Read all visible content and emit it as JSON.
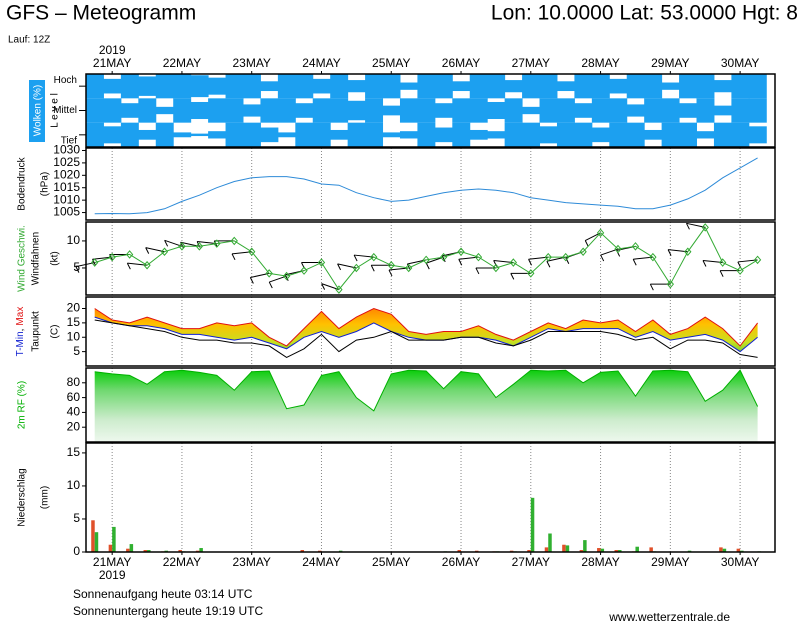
{
  "header": {
    "title": "GFS – Meteogramm",
    "location": "Lon: 10.0000 Lat: 53.0000 Hgt: 8",
    "run": "Lauf: 12Z"
  },
  "footer": {
    "sunrise": "Sonnenaufgang heute 03:14 UTC",
    "sunset": "Sonnenuntergang heute 19:19 UTC",
    "source": "www.wetterzentrale.de"
  },
  "chart_data": [
    {
      "type": "heatmap",
      "title": "Wolken (%)",
      "y_label": "L e v e l",
      "year_label": "2019",
      "x": [
        -6,
        0,
        6,
        12,
        18,
        24,
        30,
        36,
        42,
        48,
        54,
        60,
        66,
        72,
        78,
        84,
        90,
        96,
        102,
        108,
        114,
        120,
        126,
        132,
        138,
        144,
        150,
        156,
        162,
        168,
        174,
        180,
        186,
        192,
        198,
        204,
        210,
        216,
        222
      ],
      "xlim": [
        -9,
        228
      ],
      "xticks": [
        {
          "value": 0,
          "label": "21MAY"
        },
        {
          "value": 24,
          "label": "22MAY"
        },
        {
          "value": 48,
          "label": "23MAY"
        },
        {
          "value": 72,
          "label": "24MAY"
        },
        {
          "value": 96,
          "label": "25MAY"
        },
        {
          "value": 120,
          "label": "26MAY"
        },
        {
          "value": 144,
          "label": "27MAY"
        },
        {
          "value": 168,
          "label": "28MAY"
        },
        {
          "value": 192,
          "label": "29MAY"
        },
        {
          "value": 216,
          "label": "30MAY"
        }
      ],
      "color": "#1ca0f0",
      "series": [
        {
          "name": "Hoch",
          "values": [
            100,
            60,
            100,
            80,
            100,
            100,
            90,
            70,
            100,
            100,
            40,
            100,
            100,
            60,
            100,
            50,
            100,
            100,
            30,
            100,
            100,
            40,
            100,
            100,
            50,
            100,
            100,
            40,
            100,
            100,
            60,
            100,
            100,
            30,
            100,
            100,
            50,
            100,
            100
          ]
        },
        {
          "name": "Mittel",
          "values": [
            100,
            100,
            60,
            100,
            30,
            100,
            70,
            100,
            100,
            50,
            100,
            100,
            60,
            100,
            100,
            80,
            100,
            40,
            100,
            100,
            60,
            100,
            100,
            70,
            100,
            30,
            100,
            100,
            60,
            100,
            100,
            50,
            100,
            100,
            60,
            100,
            40,
            100,
            100
          ]
        },
        {
          "name": "Tief",
          "values": [
            100,
            70,
            100,
            40,
            100,
            20,
            10,
            30,
            100,
            100,
            60,
            20,
            100,
            100,
            40,
            100,
            100,
            20,
            30,
            100,
            60,
            100,
            40,
            30,
            100,
            100,
            70,
            100,
            100,
            60,
            100,
            100,
            40,
            100,
            100,
            30,
            100,
            100,
            70
          ]
        }
      ]
    },
    {
      "type": "line",
      "title": "Bodendruck",
      "y_label": "(hPa)",
      "x": [
        -6,
        0,
        6,
        12,
        18,
        24,
        30,
        36,
        42,
        48,
        54,
        60,
        66,
        72,
        78,
        84,
        90,
        96,
        102,
        108,
        114,
        120,
        126,
        132,
        138,
        144,
        150,
        156,
        162,
        168,
        174,
        180,
        186,
        192,
        198,
        204,
        210,
        216,
        222
      ],
      "xlim": [
        -9,
        228
      ],
      "ylim": [
        1002,
        1031
      ],
      "yticks": [
        1005,
        1010,
        1015,
        1020,
        1025,
        1030
      ],
      "series": [
        {
          "color": "#2e8bd8",
          "values": [
            1004.5,
            1004.6,
            1004.5,
            1005,
            1006.5,
            1009.5,
            1012,
            1015,
            1017.5,
            1019,
            1019.5,
            1019.5,
            1018.5,
            1016.5,
            1016,
            1013,
            1011,
            1009.5,
            1010,
            1011.5,
            1013,
            1014,
            1014.5,
            1014,
            1013,
            1011,
            1010,
            1009,
            1008.5,
            1008,
            1007.5,
            1006.5,
            1006.5,
            1008,
            1010.5,
            1014,
            1019,
            1023,
            1027
          ]
        }
      ]
    },
    {
      "type": "wind",
      "y_label": "(kt)",
      "x": [
        -6,
        0,
        6,
        12,
        18,
        24,
        30,
        36,
        42,
        48,
        54,
        60,
        66,
        72,
        78,
        84,
        90,
        96,
        102,
        108,
        114,
        120,
        126,
        132,
        138,
        144,
        150,
        156,
        162,
        168,
        174,
        180,
        186,
        192,
        198,
        204,
        210,
        216,
        222
      ],
      "xlim": [
        -9,
        228
      ],
      "ylim": [
        0,
        13.5
      ],
      "yticks": [
        5,
        10
      ],
      "series": [
        {
          "name": "Wind Geschwi.",
          "color": "#33aa33",
          "values": [
            6,
            7,
            7.5,
            5.5,
            8,
            9,
            9,
            9.5,
            10,
            8,
            4,
            3.5,
            4.5,
            6,
            1,
            5,
            7,
            5.5,
            5,
            6.5,
            7,
            8,
            7,
            5,
            6,
            4,
            7,
            7,
            8,
            11.5,
            8.5,
            9,
            7,
            2,
            8,
            12.5,
            6,
            4.5,
            6.5
          ]
        },
        {
          "name": "Windfahnen",
          "color": "#000000",
          "values": [
            250,
            260,
            270,
            280,
            290,
            300,
            290,
            280,
            270,
            260,
            250,
            240,
            250,
            270,
            300,
            290,
            280,
            270,
            260,
            250,
            240,
            250,
            260,
            270,
            280,
            270,
            260,
            250,
            240,
            230,
            240,
            250,
            260,
            270,
            280,
            290,
            280,
            270,
            260
          ]
        }
      ]
    },
    {
      "type": "range",
      "y_label": "(C)",
      "label_separator": ",",
      "x": [
        -6,
        0,
        6,
        12,
        18,
        24,
        30,
        36,
        42,
        48,
        54,
        60,
        66,
        72,
        78,
        84,
        90,
        96,
        102,
        108,
        114,
        120,
        126,
        132,
        138,
        144,
        150,
        156,
        162,
        168,
        174,
        180,
        186,
        192,
        198,
        204,
        210,
        216,
        222
      ],
      "xlim": [
        -9,
        228
      ],
      "ylim": [
        0,
        24
      ],
      "yticks": [
        5,
        10,
        15,
        20
      ],
      "series": [
        {
          "name": "T-Min",
          "color": "#1020d0",
          "values": [
            17,
            15,
            14,
            14,
            13,
            11,
            11,
            10,
            9,
            10,
            8,
            6,
            10,
            12,
            10,
            12,
            15,
            12,
            10,
            9,
            9,
            10,
            10,
            9,
            7,
            10,
            13,
            12,
            13,
            13,
            13,
            10,
            12,
            9,
            10,
            11,
            9,
            5,
            10
          ]
        },
        {
          "name": "Max",
          "color": "#e01010",
          "values": [
            20,
            16,
            15,
            17,
            15,
            13,
            13,
            15,
            14,
            15,
            10,
            7,
            13,
            19,
            13,
            17,
            20,
            18,
            12,
            11,
            12,
            12,
            14,
            11,
            9,
            12,
            15,
            13,
            16,
            15,
            16,
            12,
            16,
            11,
            13,
            17,
            13,
            7,
            15
          ]
        },
        {
          "name": "Taupunkt",
          "color": "#000000",
          "values": [
            16,
            15,
            14,
            13,
            12,
            10,
            9,
            9,
            8,
            8,
            7,
            3,
            6,
            11,
            5,
            9,
            10,
            12,
            9,
            9,
            9,
            10,
            10,
            8,
            7,
            9,
            12,
            12,
            12,
            12,
            11,
            9,
            10,
            6,
            9,
            9,
            8,
            4,
            3
          ]
        }
      ]
    },
    {
      "type": "area",
      "title": "2m RF (%)",
      "x": [
        -6,
        0,
        6,
        12,
        18,
        24,
        30,
        36,
        42,
        48,
        54,
        60,
        66,
        72,
        78,
        84,
        90,
        96,
        102,
        108,
        114,
        120,
        126,
        132,
        138,
        144,
        150,
        156,
        162,
        168,
        174,
        180,
        186,
        192,
        198,
        204,
        210,
        216,
        222
      ],
      "xlim": [
        -9,
        228
      ],
      "ylim": [
        0,
        100
      ],
      "yticks": [
        20,
        40,
        60,
        80
      ],
      "series": [
        {
          "color": "#00b000",
          "values": [
            95,
            92,
            90,
            78,
            95,
            97,
            94,
            90,
            70,
            95,
            96,
            45,
            50,
            90,
            95,
            60,
            42,
            92,
            97,
            96,
            72,
            95,
            92,
            60,
            78,
            97,
            96,
            97,
            80,
            94,
            96,
            62,
            96,
            97,
            95,
            55,
            70,
            97,
            48
          ]
        }
      ]
    },
    {
      "type": "bar",
      "title": "Niederschlag",
      "y_label": "(mm)",
      "year_label": "2019",
      "x": [
        -6,
        0,
        6,
        12,
        18,
        24,
        30,
        36,
        42,
        48,
        54,
        60,
        66,
        72,
        78,
        84,
        90,
        96,
        102,
        108,
        114,
        120,
        126,
        132,
        138,
        144,
        150,
        156,
        162,
        168,
        174,
        180,
        186,
        192,
        198,
        204,
        210,
        216,
        222
      ],
      "xlim": [
        -9,
        228
      ],
      "ylim": [
        0,
        16.5
      ],
      "yticks": [
        0,
        5,
        10,
        15
      ],
      "xticks": [
        {
          "value": 0,
          "label": "21MAY"
        },
        {
          "value": 24,
          "label": "22MAY"
        },
        {
          "value": 48,
          "label": "23MAY"
        },
        {
          "value": 72,
          "label": "24MAY"
        },
        {
          "value": 96,
          "label": "25MAY"
        },
        {
          "value": 120,
          "label": "26MAY"
        },
        {
          "value": 144,
          "label": "27MAY"
        },
        {
          "value": 168,
          "label": "28MAY"
        },
        {
          "value": 192,
          "label": "29MAY"
        },
        {
          "value": 216,
          "label": "30MAY"
        }
      ],
      "series": [
        {
          "color": "#e0502a",
          "values": [
            4.8,
            1.1,
            0.5,
            0.3,
            0.1,
            0.3,
            0.2,
            0,
            0,
            0,
            0,
            0,
            0.3,
            0.2,
            0,
            0,
            0,
            0,
            0,
            0,
            0,
            0.3,
            0.2,
            0.1,
            0.2,
            0.3,
            0.7,
            1.1,
            0.3,
            0.6,
            0.3,
            0.1,
            0.7,
            0,
            0,
            0,
            0.7,
            0.5,
            0
          ]
        },
        {
          "color": "#30b030",
          "values": [
            3,
            3.8,
            1.2,
            0.3,
            0.2,
            0.1,
            0.6,
            0,
            0,
            0,
            0,
            0,
            0,
            0,
            0.2,
            0,
            0,
            0,
            0,
            0,
            0.1,
            0,
            0,
            0.1,
            0.1,
            8.2,
            2.8,
            1,
            1.8,
            0.5,
            0.3,
            0.8,
            0.1,
            0,
            0.2,
            0,
            0.5,
            0.2,
            0.1
          ]
        }
      ]
    }
  ]
}
